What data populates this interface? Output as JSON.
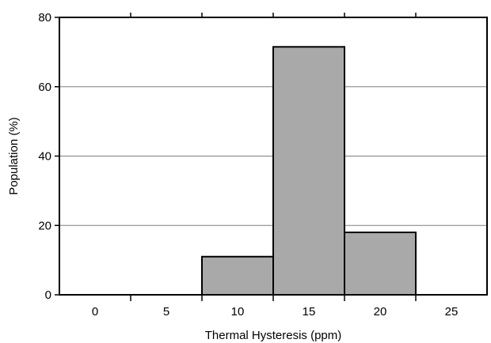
{
  "chart_data": {
    "type": "bar",
    "title": "",
    "xlabel": "Thermal Hysteresis (ppm)",
    "ylabel": "Population (%)",
    "x_ticks": [
      0,
      5,
      10,
      15,
      20,
      25
    ],
    "y_ticks": [
      0,
      20,
      40,
      60,
      80
    ],
    "xlim": [
      -2.5,
      27.5
    ],
    "ylim": [
      0,
      80
    ],
    "bar_width": 5,
    "categories": [
      10,
      15,
      20
    ],
    "values": [
      11,
      71.5,
      18
    ],
    "grid": "horizontal",
    "bar_color": "#a9a9a9",
    "edge_color": "#000000"
  }
}
